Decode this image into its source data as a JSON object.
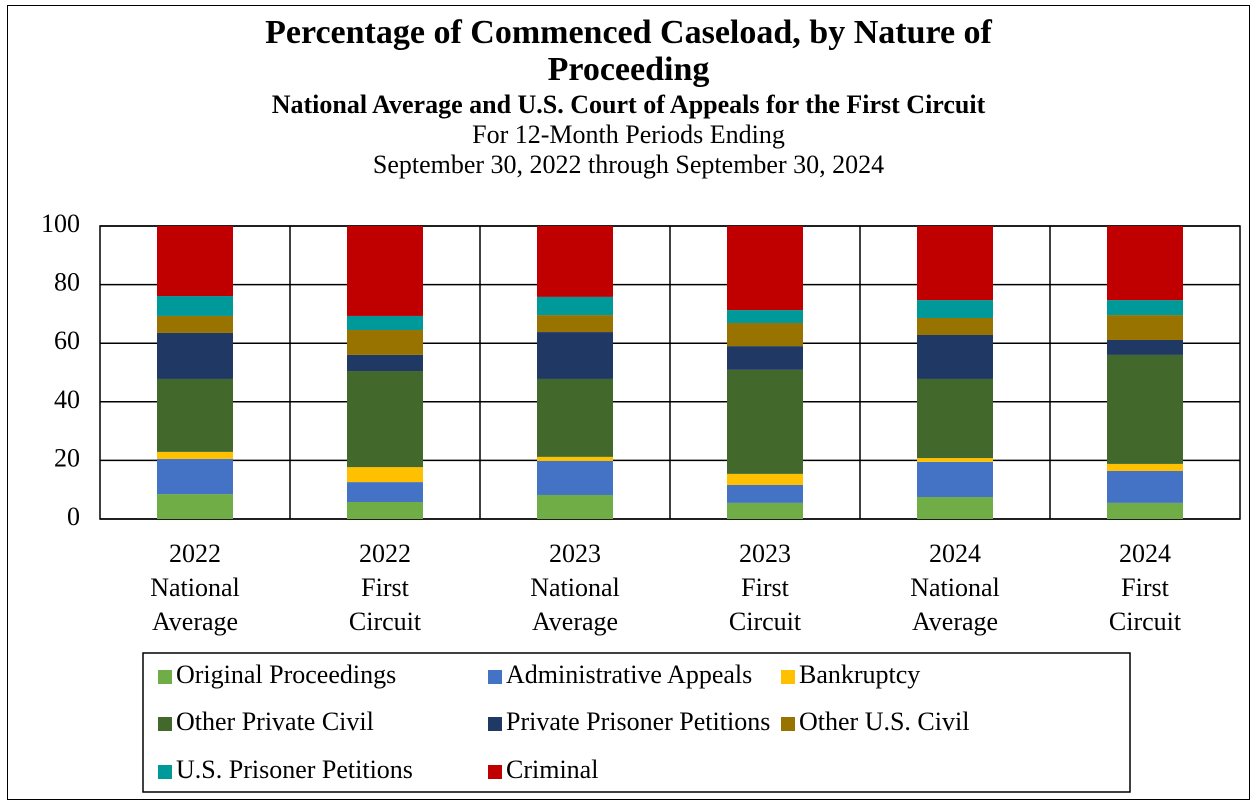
{
  "chart_data": {
    "type": "stacked_bar",
    "title": "Percentage of Commenced Caseload, by Nature of Proceeding",
    "subtitle": "National Average and U.S. Court of Appeals for the First Circuit",
    "period_lines": [
      "For 12-Month Periods Ending",
      "September 30, 2022 through September 30, 2024"
    ],
    "categories": [
      "2022 National Average",
      "2022 First Circuit",
      "2023 National Average",
      "2023 First Circuit",
      "2024 National Average",
      "2024 First Circuit"
    ],
    "ylim": [
      0,
      100
    ],
    "yticks": [
      0,
      20,
      40,
      60,
      80,
      100
    ],
    "grid": true,
    "series": [
      {
        "name": "Original Proceedings",
        "color": "#70ad47",
        "values": [
          8.5,
          5.8,
          8.2,
          5.5,
          7.5,
          5.5
        ]
      },
      {
        "name": "Administrative Appeals",
        "color": "#4472c4",
        "values": [
          12.0,
          6.8,
          11.6,
          6.1,
          12.0,
          10.9
        ]
      },
      {
        "name": "Bankruptcy",
        "color": "#ffc000",
        "values": [
          2.4,
          5.1,
          1.4,
          3.8,
          1.3,
          2.4
        ]
      },
      {
        "name": "Other Private Civil",
        "color": "#43682b",
        "values": [
          24.9,
          32.8,
          26.6,
          35.5,
          27.0,
          37.2
        ]
      },
      {
        "name": "Private Prisoner Petitions",
        "color": "#203864",
        "values": [
          15.7,
          5.5,
          16.0,
          8.1,
          15.0,
          5.1
        ]
      },
      {
        "name": "Other U.S. Civil",
        "color": "#997300",
        "values": [
          5.8,
          8.5,
          5.8,
          7.9,
          5.8,
          8.5
        ]
      },
      {
        "name": "U.S. Prisoner Petitions",
        "color": "#00999a",
        "values": [
          6.8,
          4.8,
          6.2,
          4.4,
          6.1,
          5.1
        ]
      },
      {
        "name": "Criminal",
        "color": "#c00000",
        "values": [
          23.9,
          30.7,
          24.2,
          28.7,
          25.3,
          25.3
        ]
      }
    ]
  }
}
